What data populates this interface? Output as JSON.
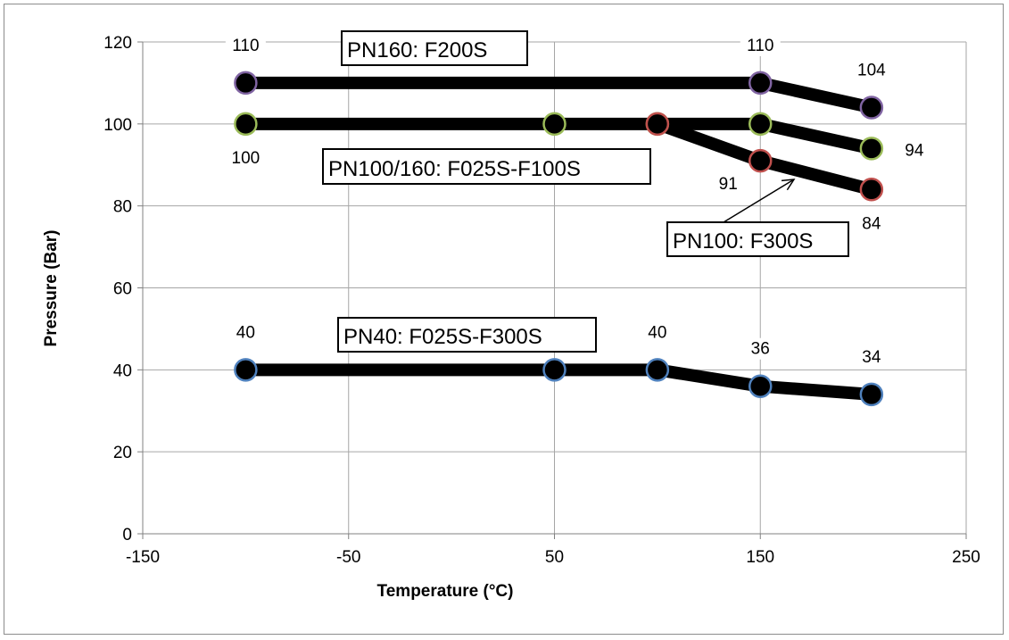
{
  "chart_data": {
    "type": "line",
    "xlabel": "Temperature (°C)",
    "ylabel": "Pressure (Bar)",
    "xlim": [
      -150,
      250
    ],
    "ylim": [
      0,
      120
    ],
    "xticks": [
      -150,
      -50,
      50,
      150,
      250
    ],
    "yticks": [
      0,
      20,
      40,
      60,
      80,
      100,
      120
    ],
    "xtick_labels": [
      "-150",
      "-50",
      "50",
      "150",
      "250"
    ],
    "ytick_labels": [
      "0",
      "20",
      "40",
      "60",
      "80",
      "100",
      "120"
    ],
    "grid": true,
    "series": [
      {
        "name": "PN160: F200S",
        "x": [
          -100,
          150,
          204
        ],
        "y": [
          110,
          110,
          104
        ],
        "marker_edge": "#8064a2"
      },
      {
        "name": "PN100/160: F025S-F100S",
        "x": [
          -100,
          50,
          100,
          150,
          204
        ],
        "y": [
          100,
          100,
          100,
          100,
          94
        ],
        "marker_edge": "#9bbb59"
      },
      {
        "name": "PN100: F300S",
        "x": [
          100,
          150,
          204
        ],
        "y": [
          100,
          91,
          84
        ],
        "marker_edge": "#c0504d"
      },
      {
        "name": "PN40: F025S-F300S",
        "x": [
          -100,
          50,
          100,
          150,
          204
        ],
        "y": [
          40,
          40,
          40,
          36,
          34
        ],
        "marker_edge": "#4f81bd"
      }
    ],
    "data_labels": [
      {
        "text": "110",
        "series": 0,
        "point": 0,
        "pos": "above"
      },
      {
        "text": "110",
        "series": 0,
        "point": 1,
        "pos": "above"
      },
      {
        "text": "104",
        "series": 0,
        "point": 2,
        "pos": "above"
      },
      {
        "text": "100",
        "series": 1,
        "point": 0,
        "pos": "below"
      },
      {
        "text": "94",
        "series": 1,
        "point": 4,
        "pos": "right"
      },
      {
        "text": "91",
        "series": 2,
        "point": 1,
        "pos": "below-left"
      },
      {
        "text": "84",
        "series": 2,
        "point": 2,
        "pos": "below"
      },
      {
        "text": "40",
        "series": 3,
        "point": 0,
        "pos": "above"
      },
      {
        "text": "40",
        "series": 3,
        "point": 2,
        "pos": "above"
      },
      {
        "text": "36",
        "series": 3,
        "point": 3,
        "pos": "above"
      },
      {
        "text": "34",
        "series": 3,
        "point": 4,
        "pos": "above"
      }
    ],
    "annotations": [
      {
        "text": "PN160: F200S",
        "series": 0
      },
      {
        "text": "PN100/160: F025S-F100S",
        "series": 1
      },
      {
        "text": "PN100: F300S",
        "series": 2
      },
      {
        "text": "PN40: F025S-F300S",
        "series": 3
      }
    ],
    "colors": {
      "line": "#000000",
      "marker_fill": "#000000",
      "grid": "#a6a6a6",
      "axis": "#808080"
    }
  }
}
